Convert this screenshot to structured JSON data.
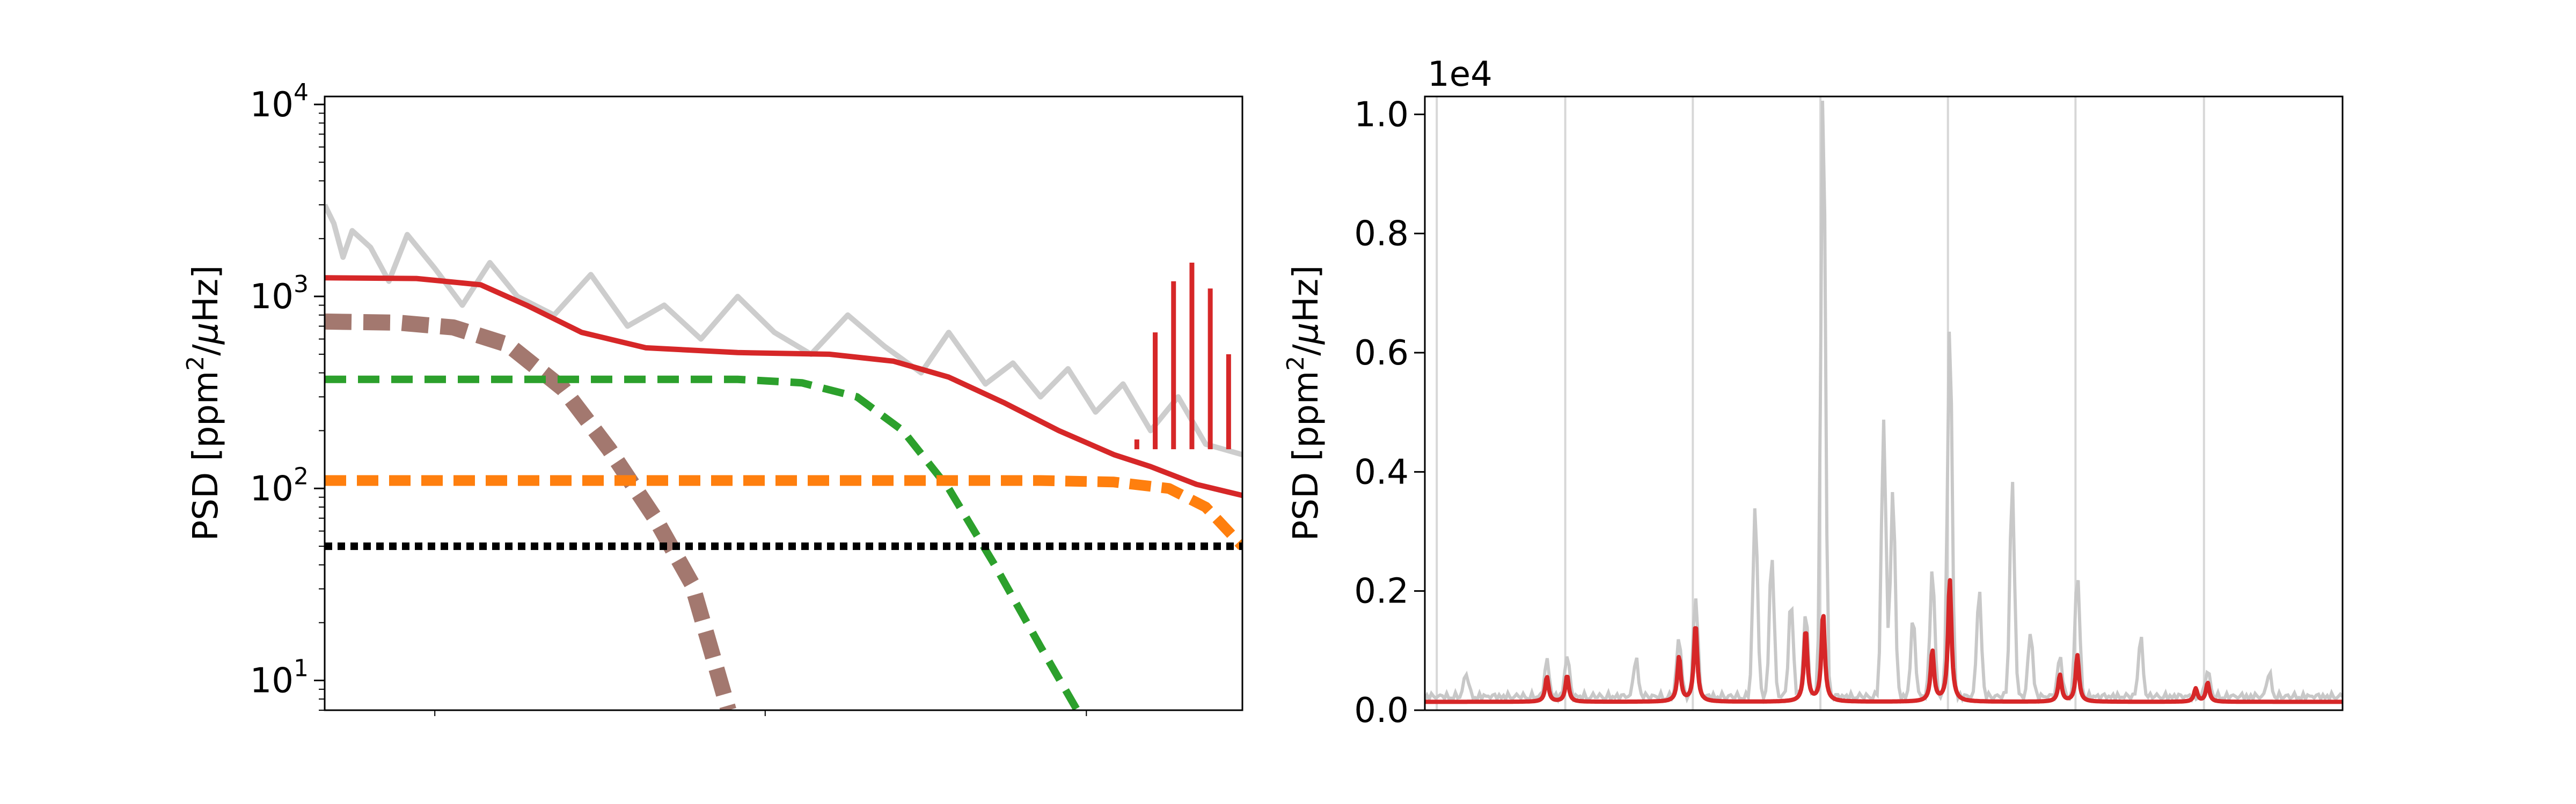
{
  "chart_data": [
    {
      "type": "line",
      "yscale": "log",
      "xscale": "log",
      "ylabel": "PSD [ppm$^2$/$\\mu$Hz]",
      "ylabel_parts": {
        "text": "PSD [ppm",
        "sup": "2",
        "slash": "/",
        "mu": "μ",
        "unit_end": "Hz]"
      },
      "ylim": [
        7,
        11000
      ],
      "yticks": [
        {
          "value": 10,
          "base": "10",
          "exp": "1"
        },
        {
          "value": 100,
          "base": "10",
          "exp": "2"
        },
        {
          "value": 1000,
          "base": "10",
          "exp": "3"
        },
        {
          "value": 10000,
          "base": "10",
          "exp": "4"
        }
      ],
      "xtick_labels_visible": false,
      "grid": false,
      "colors": {
        "data": "#c8c8c8",
        "model": "#d62728",
        "component_low": "#8c564b",
        "component_mid": "#2ca02c",
        "component_high": "#ff7f0e",
        "white_noise": "#000000"
      },
      "series": [
        {
          "style": "solid",
          "points": [
            [
              0.0,
              3000
            ],
            [
              0.01,
              2400
            ],
            [
              0.02,
              1600
            ],
            [
              0.03,
              2200
            ],
            [
              0.05,
              1800
            ],
            [
              0.07,
              1200
            ],
            [
              0.09,
              2100
            ],
            [
              0.12,
              1400
            ],
            [
              0.15,
              900
            ],
            [
              0.18,
              1500
            ],
            [
              0.21,
              1000
            ],
            [
              0.25,
              800
            ],
            [
              0.29,
              1300
            ],
            [
              0.33,
              700
            ],
            [
              0.37,
              900
            ],
            [
              0.41,
              600
            ],
            [
              0.45,
              1000
            ],
            [
              0.49,
              650
            ],
            [
              0.53,
              500
            ],
            [
              0.57,
              800
            ],
            [
              0.61,
              550
            ],
            [
              0.65,
              400
            ],
            [
              0.68,
              650
            ],
            [
              0.72,
              350
            ],
            [
              0.75,
              450
            ],
            [
              0.78,
              300
            ],
            [
              0.81,
              420
            ],
            [
              0.84,
              250
            ],
            [
              0.87,
              350
            ],
            [
              0.9,
              200
            ],
            [
              0.93,
              300
            ],
            [
              0.96,
              170
            ],
            [
              1.0,
              150
            ]
          ]
        },
        {
          "style": "solid",
          "points": [
            [
              0.0,
              1250
            ],
            [
              0.1,
              1240
            ],
            [
              0.17,
              1150
            ],
            [
              0.22,
              900
            ],
            [
              0.28,
              650
            ],
            [
              0.35,
              540
            ],
            [
              0.45,
              510
            ],
            [
              0.55,
              500
            ],
            [
              0.62,
              460
            ],
            [
              0.68,
              380
            ],
            [
              0.74,
              280
            ],
            [
              0.8,
              200
            ],
            [
              0.86,
              150
            ],
            [
              0.9,
              130
            ],
            [
              0.95,
              105
            ],
            [
              1.0,
              92
            ]
          ]
        },
        {
          "style": "dashed",
          "points": [
            [
              0.0,
              740
            ],
            [
              0.08,
              730
            ],
            [
              0.14,
              690
            ],
            [
              0.2,
              560
            ],
            [
              0.26,
              330
            ],
            [
              0.31,
              160
            ],
            [
              0.36,
              70
            ],
            [
              0.4,
              32
            ],
            [
              0.44,
              7
            ]
          ]
        },
        {
          "style": "dashed",
          "points": [
            [
              0.0,
              370
            ],
            [
              0.45,
              370
            ],
            [
              0.52,
              355
            ],
            [
              0.58,
              300
            ],
            [
              0.63,
              200
            ],
            [
              0.68,
              100
            ],
            [
              0.73,
              40
            ],
            [
              0.78,
              15
            ],
            [
              0.82,
              7
            ]
          ]
        },
        {
          "style": "dashed",
          "points": [
            [
              0.0,
              110
            ],
            [
              0.78,
              110
            ],
            [
              0.86,
              108
            ],
            [
              0.92,
              100
            ],
            [
              0.96,
              80
            ],
            [
              1.0,
              50
            ]
          ]
        },
        {
          "style": "dotted",
          "points": [
            [
              0.0,
              50
            ],
            [
              1.0,
              50
            ]
          ]
        }
      ]
    },
    {
      "type": "line",
      "ylabel": "PSD [ppm$^2$/$\\mu$Hz]",
      "ylabel_parts": {
        "text": "PSD [ppm",
        "sup": "2",
        "slash": "/",
        "mu": "μ",
        "unit_end": "Hz]"
      },
      "offset_text": "1e4",
      "ylim": [
        0.0,
        1.03
      ],
      "yticks": [
        {
          "value": 0.0,
          "label": "0.0"
        },
        {
          "value": 0.2,
          "label": "0.2"
        },
        {
          "value": 0.4,
          "label": "0.4"
        },
        {
          "value": 0.6,
          "label": "0.6"
        },
        {
          "value": 0.8,
          "label": "0.8"
        },
        {
          "value": 1.0,
          "label": "1.0"
        }
      ],
      "xtick_labels_visible": false,
      "grid": false,
      "vertical_lines_x": [
        0.013,
        0.153,
        0.292,
        0.431,
        0.57,
        0.709,
        0.849
      ],
      "model_baseline": 0.014,
      "model_peaks": [
        {
          "x": 0.133,
          "h": 0.042
        },
        {
          "x": 0.155,
          "h": 0.044
        },
        {
          "x": 0.277,
          "h": 0.075
        },
        {
          "x": 0.295,
          "h": 0.13
        },
        {
          "x": 0.415,
          "h": 0.12
        },
        {
          "x": 0.434,
          "h": 0.148
        },
        {
          "x": 0.553,
          "h": 0.085
        },
        {
          "x": 0.572,
          "h": 0.205
        },
        {
          "x": 0.692,
          "h": 0.045
        },
        {
          "x": 0.711,
          "h": 0.078
        },
        {
          "x": 0.84,
          "h": 0.022
        },
        {
          "x": 0.853,
          "h": 0.032
        }
      ],
      "data_peaks": [
        {
          "x": 0.045,
          "h": 0.04
        },
        {
          "x": 0.133,
          "h": 0.06
        },
        {
          "x": 0.155,
          "h": 0.07
        },
        {
          "x": 0.23,
          "h": 0.065
        },
        {
          "x": 0.277,
          "h": 0.1
        },
        {
          "x": 0.295,
          "h": 0.17
        },
        {
          "x": 0.36,
          "h": 0.32
        },
        {
          "x": 0.378,
          "h": 0.24
        },
        {
          "x": 0.399,
          "h": 0.16
        },
        {
          "x": 0.415,
          "h": 0.14
        },
        {
          "x": 0.434,
          "h": 1.03
        },
        {
          "x": 0.5,
          "h": 0.46
        },
        {
          "x": 0.51,
          "h": 0.35
        },
        {
          "x": 0.532,
          "h": 0.13
        },
        {
          "x": 0.553,
          "h": 0.22
        },
        {
          "x": 0.572,
          "h": 0.63
        },
        {
          "x": 0.604,
          "h": 0.18
        },
        {
          "x": 0.64,
          "h": 0.36
        },
        {
          "x": 0.66,
          "h": 0.11
        },
        {
          "x": 0.692,
          "h": 0.07
        },
        {
          "x": 0.711,
          "h": 0.21
        },
        {
          "x": 0.78,
          "h": 0.1
        },
        {
          "x": 0.853,
          "h": 0.045
        },
        {
          "x": 0.92,
          "h": 0.04
        }
      ]
    }
  ]
}
